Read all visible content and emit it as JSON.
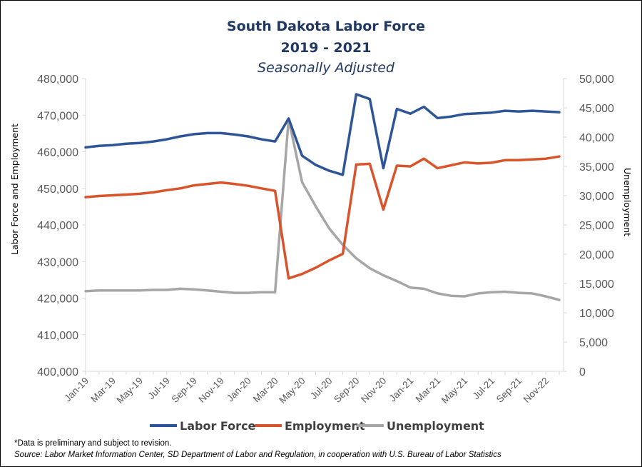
{
  "chart_data": {
    "type": "line",
    "title": "South Dakota Labor Force",
    "subtitle_years": "2019 - 2021",
    "subtitle_note": "Seasonally Adjusted",
    "ylabel_left": "Labor Force and Employment",
    "ylabel_right": "Unemployment",
    "ylim_left": [
      400000,
      480000
    ],
    "ylim_right": [
      0,
      50000
    ],
    "yticks_left": [
      "400,000",
      "410,000",
      "420,000",
      "430,000",
      "440,000",
      "450,000",
      "460,000",
      "470,000",
      "480,000"
    ],
    "yticks_right": [
      "0",
      "5,000",
      "10,000",
      "15,000",
      "20,000",
      "25,000",
      "30,000",
      "35,000",
      "40,000",
      "45,000",
      "50,000"
    ],
    "x_tick_labels": [
      "Jan-19",
      "Mar-19",
      "May-19",
      "Jul-19",
      "Sep-19",
      "Nov-19",
      "Jan-20",
      "Mar-20",
      "May-20",
      "Jul-20",
      "Sep-20",
      "Nov-20",
      "Jan-21",
      "Mar-21",
      "May-21",
      "Jul-21",
      "Sep-21",
      "Nov-22"
    ],
    "series": [
      {
        "name": "Labor Force",
        "axis": "left",
        "color": "#2e5597",
        "values": [
          461200,
          461600,
          461800,
          462200,
          462400,
          462800,
          463400,
          464200,
          464800,
          465100,
          465100,
          464700,
          464200,
          463400,
          462800,
          469100,
          458900,
          456400,
          454800,
          453700,
          475700,
          474400,
          455500,
          471700,
          470400,
          472300,
          469200,
          469600,
          470300,
          470500,
          470700,
          471200,
          471000,
          471200,
          471000,
          470800
        ]
      },
      {
        "name": "Employment",
        "axis": "left",
        "color": "#d9532b",
        "values": [
          447600,
          447900,
          448100,
          448300,
          448500,
          448900,
          449500,
          450000,
          450800,
          451200,
          451600,
          451200,
          450700,
          450000,
          449300,
          425400,
          426600,
          428300,
          430300,
          432100,
          456500,
          456700,
          444200,
          456200,
          456000,
          458100,
          455500,
          456300,
          457100,
          456800,
          457000,
          457700,
          457700,
          457900,
          458100,
          458700
        ]
      },
      {
        "name": "Unemployment",
        "axis": "right",
        "color": "#a6a6a6",
        "values": [
          13700,
          13800,
          13800,
          13800,
          13800,
          13900,
          13900,
          14100,
          14000,
          13800,
          13600,
          13400,
          13400,
          13500,
          13500,
          43100,
          32300,
          28200,
          24400,
          21600,
          19300,
          17600,
          16400,
          15400,
          14300,
          14100,
          13300,
          12900,
          12800,
          13300,
          13500,
          13600,
          13400,
          13300,
          12800,
          12200
        ]
      }
    ],
    "footnote": "*Data is preliminary and subject to revision.",
    "source_label": "Source:",
    "source_text": "Labor Market Information Center, SD Department of Labor and Regulation, in cooperation with U.S. Bureau of Labor Statistics"
  }
}
